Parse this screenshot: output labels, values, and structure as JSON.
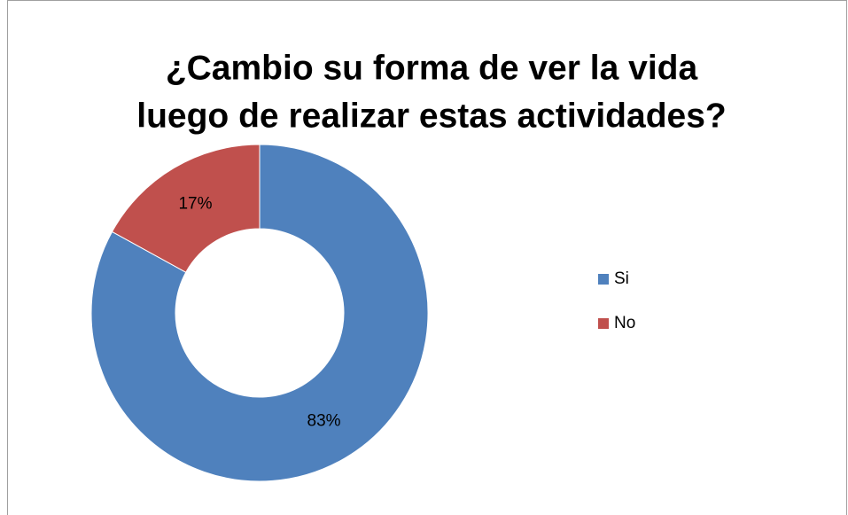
{
  "chart_data": {
    "type": "donut",
    "title": [
      "¿Cambio su forma de ver la vida",
      "luego de realizar estas actividades?"
    ],
    "categories": [
      "Si",
      "No"
    ],
    "values": [
      83,
      17
    ],
    "value_labels": [
      "83%",
      "17%"
    ],
    "colors": [
      "#4f81bd",
      "#c0504d"
    ],
    "legend": "right"
  }
}
